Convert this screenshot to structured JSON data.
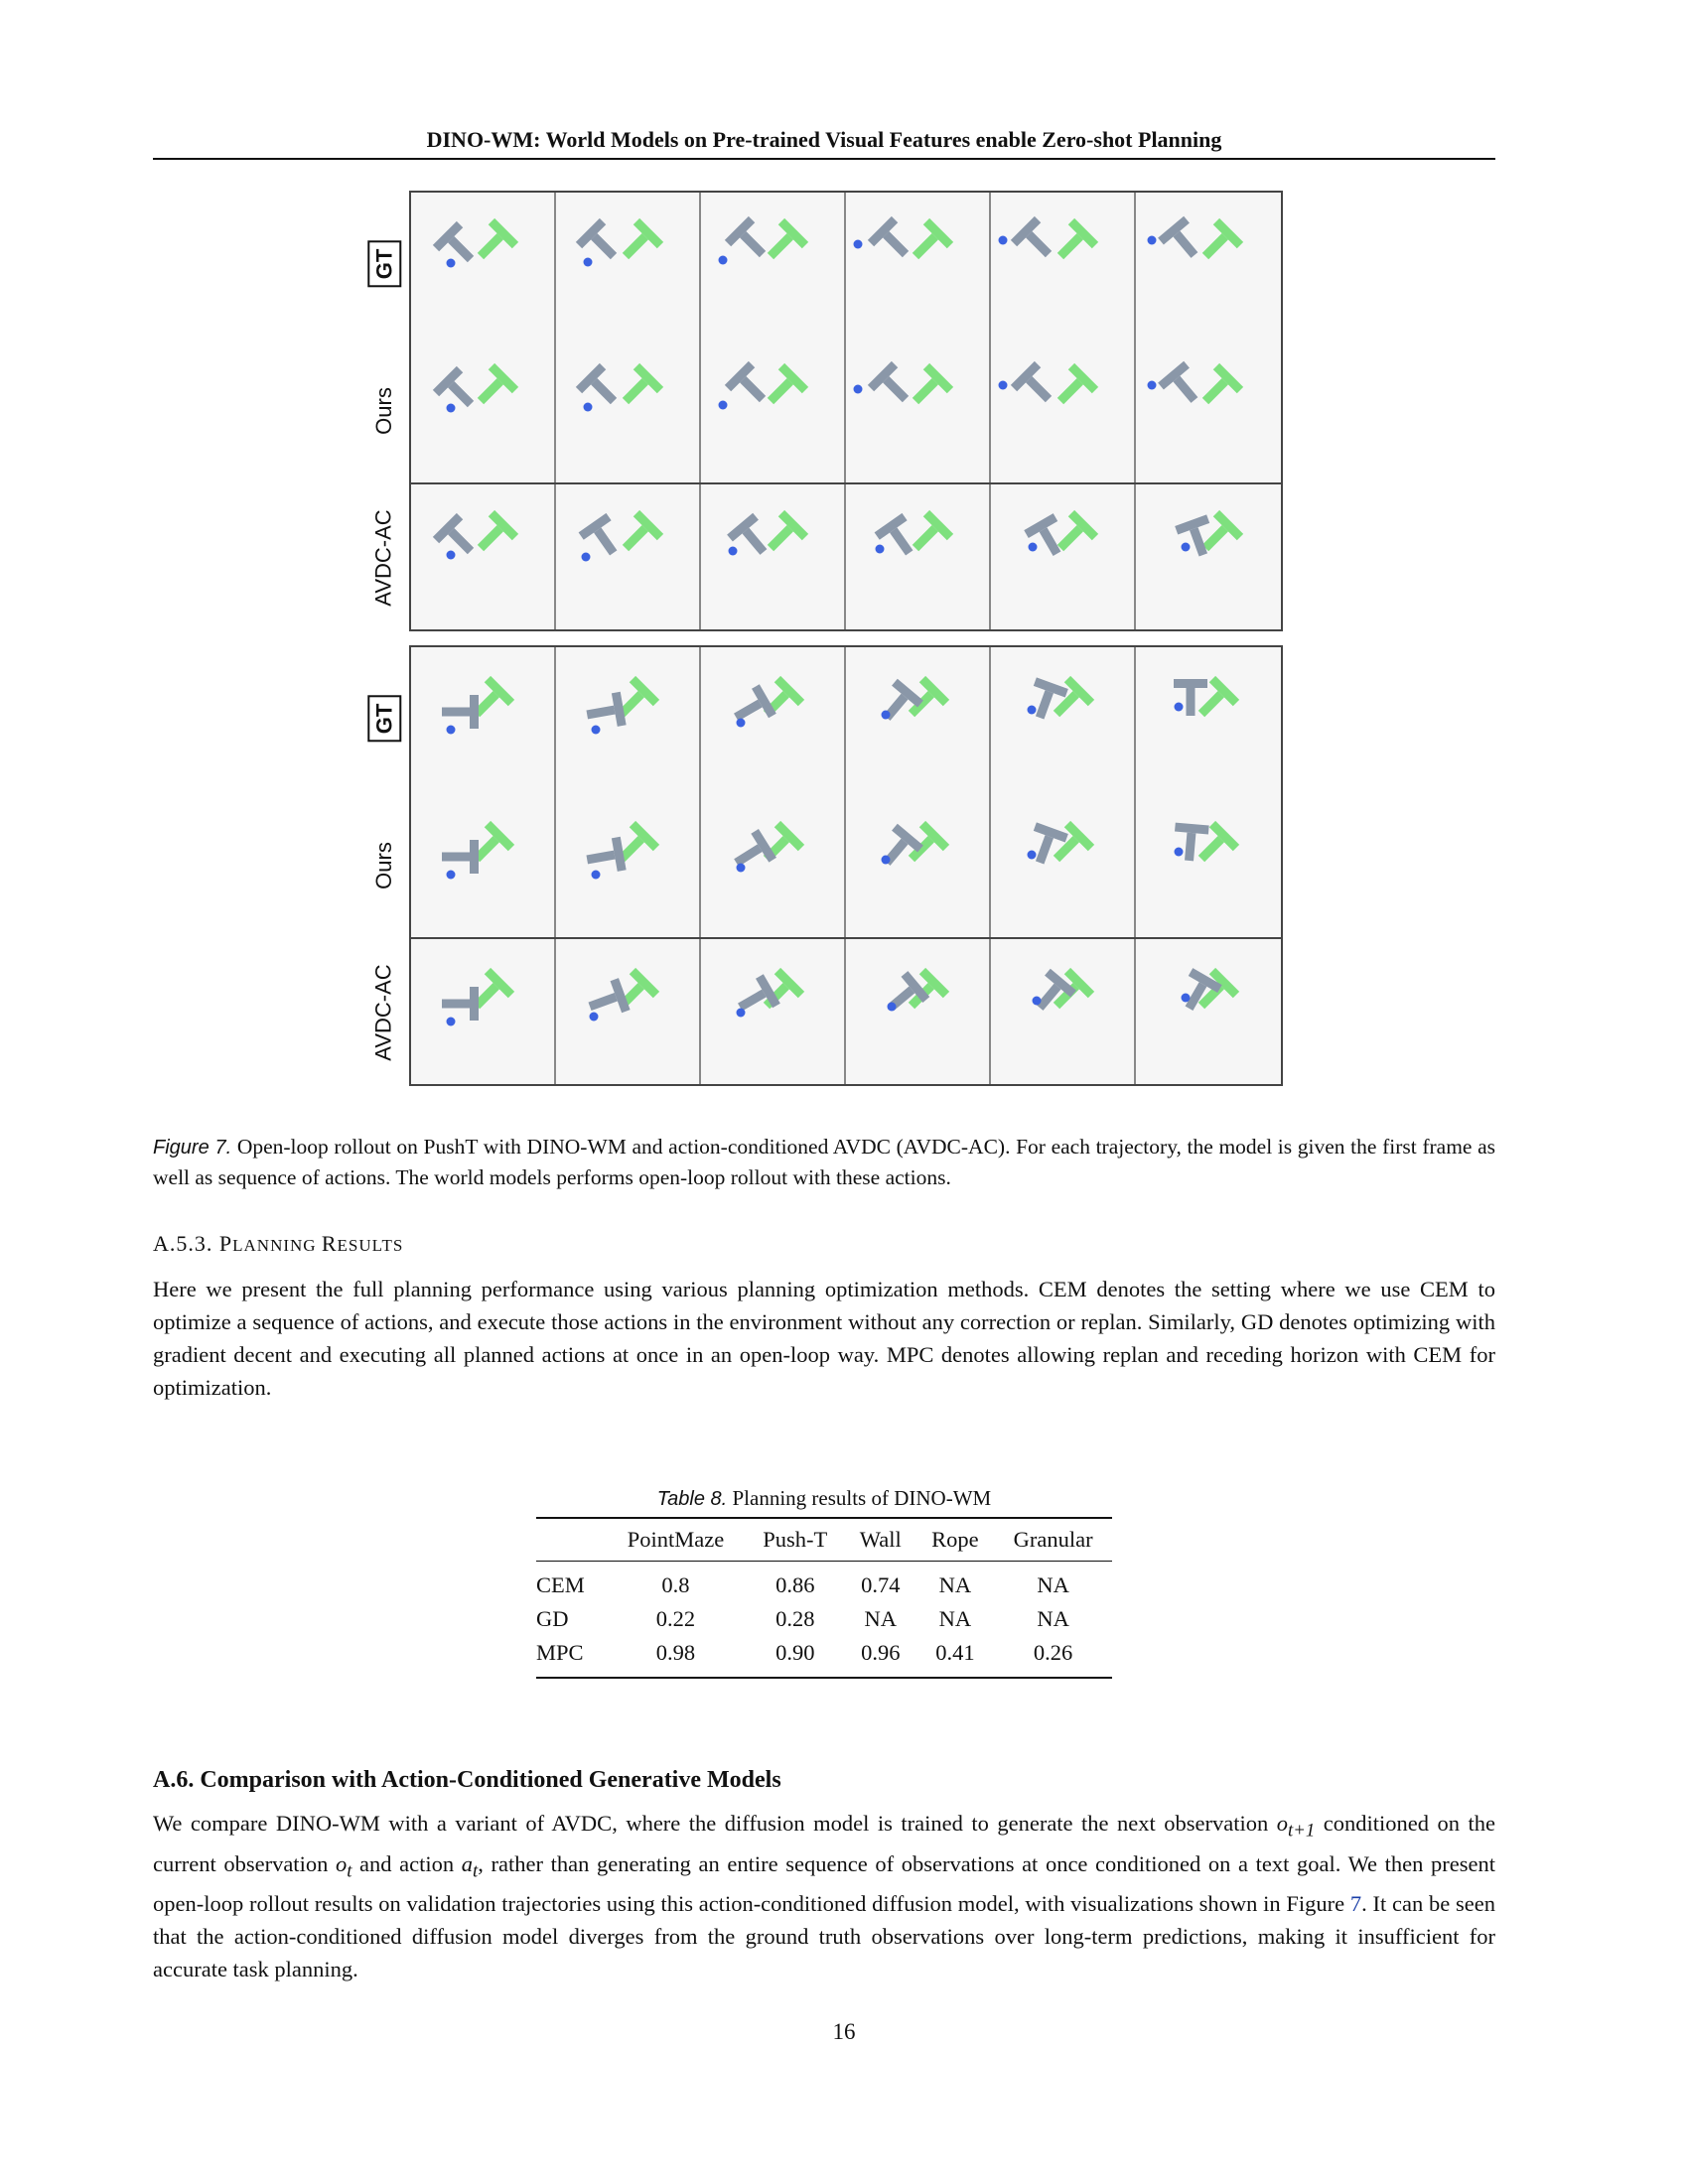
{
  "header": {
    "title": "DINO-WM: World Models on Pre-trained Visual Features enable Zero-shot Planning"
  },
  "figure": {
    "blocks": [
      {
        "rows": [
          {
            "label": "GT",
            "boxed": true
          },
          {
            "label": "Ours",
            "boxed": false
          },
          {
            "label": "AVDC-AC",
            "boxed": false
          }
        ]
      },
      {
        "rows": [
          {
            "label": "GT",
            "boxed": true
          },
          {
            "label": "Ours",
            "boxed": false
          },
          {
            "label": "AVDC-AC",
            "boxed": false
          }
        ]
      }
    ],
    "colors": {
      "t_block": "#8a97a8",
      "goal": "#7ee07e",
      "agent": "#3b62e0"
    },
    "caption_label": "Figure 7.",
    "caption_text": "Open-loop rollout on PushT with DINO-WM and action-conditioned AVDC (AVDC-AC). For each trajectory, the model is given the first frame as well as sequence of actions. The world models performs open-loop rollout with these actions."
  },
  "subsection": {
    "number": "A.5.3.",
    "title_first": "P",
    "title_rest": "LANNING ",
    "title_first2": "R",
    "title_rest2": "ESULTS"
  },
  "planning_paragraph": "Here we present the full planning performance using various planning optimization methods. CEM denotes the setting where we use CEM to optimize a sequence of actions, and execute those actions in the environment without any correction or replan. Similarly, GD denotes optimizing with gradient decent and executing all planned actions at once in an open-loop way. MPC denotes allowing replan and receding horizon with CEM for optimization.",
  "table": {
    "caption_label": "Table 8.",
    "caption_text": "Planning results of DINO-WM",
    "columns": [
      "",
      "PointMaze",
      "Push-T",
      "Wall",
      "Rope",
      "Granular"
    ],
    "rows": [
      [
        "CEM",
        "0.8",
        "0.86",
        "0.74",
        "NA",
        "NA"
      ],
      [
        "GD",
        "0.22",
        "0.28",
        "NA",
        "NA",
        "NA"
      ],
      [
        "MPC",
        "0.98",
        "0.90",
        "0.96",
        "0.41",
        "0.26"
      ]
    ]
  },
  "section": {
    "title": "A.6. Comparison with Action-Conditioned Generative Models"
  },
  "comparison_paragraph": {
    "p1": "We compare DINO-WM with a variant of AVDC, where the diffusion model is trained to generate the next observation ",
    "m1": "o",
    "m1sub": "t+1",
    "p2": " conditioned on the current observation ",
    "m2": "o",
    "m2sub": "t",
    "p3": " and action ",
    "m3": "a",
    "m3sub": "t",
    "p4": ", rather than generating an entire sequence of observations at once conditioned on a text goal. We then present open-loop rollout results on validation trajectories using this action-conditioned diffusion model, with visualizations shown in Figure ",
    "ref": "7",
    "p5": ". It can be seen that the action-conditioned diffusion model diverges from the ground truth observations over long-term predictions, making it insufficient for accurate task planning."
  },
  "page_number": "16"
}
